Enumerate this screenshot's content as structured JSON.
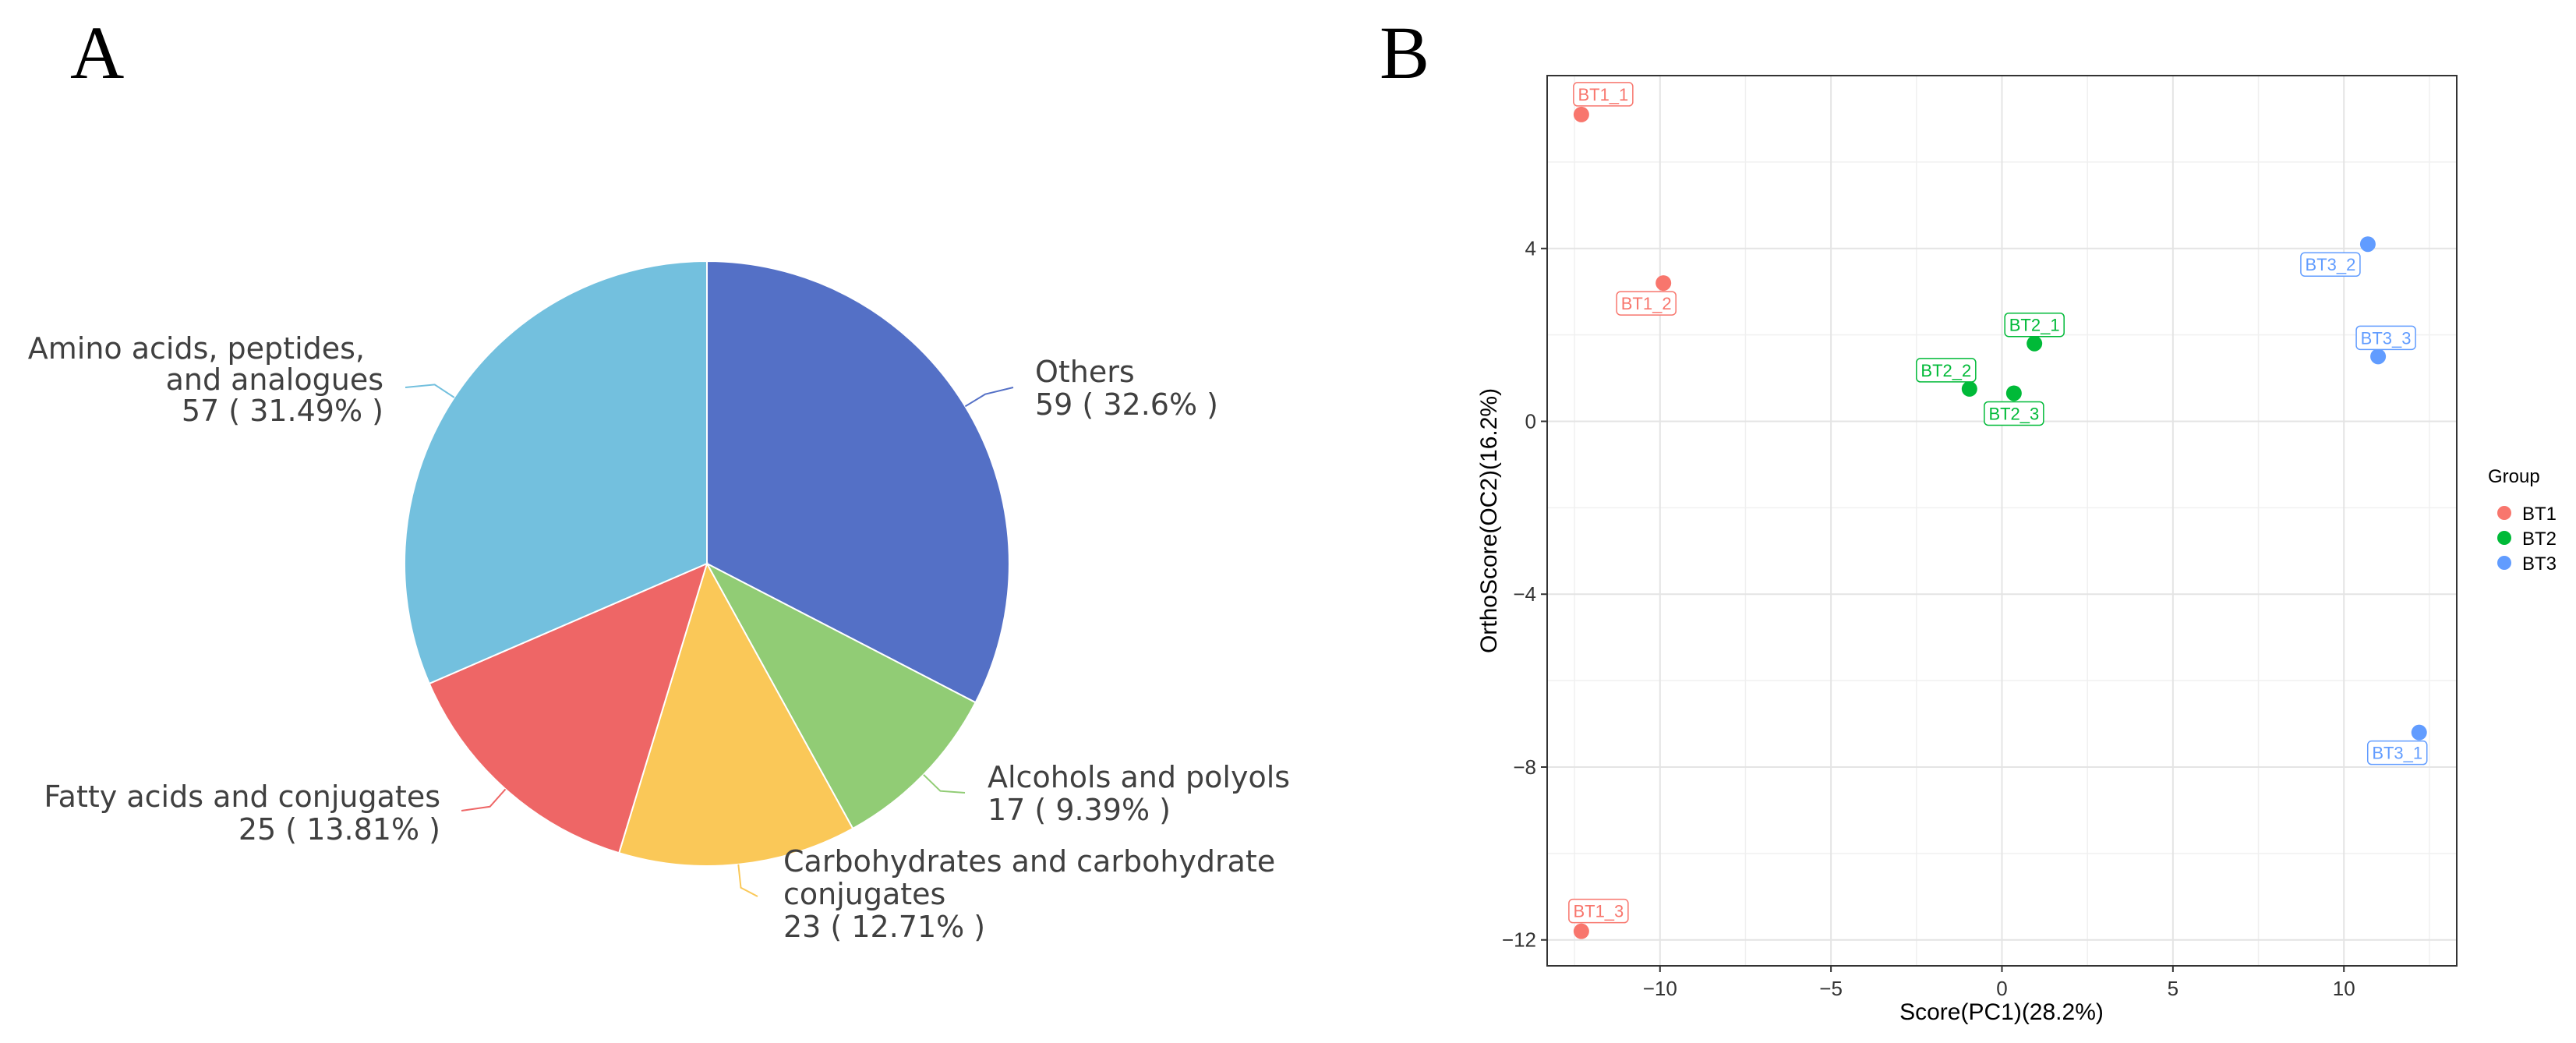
{
  "panels": {
    "a": "A",
    "b": "B"
  },
  "chart_data": [
    {
      "type": "pie",
      "panel": "A",
      "start_angle_deg": 0,
      "direction": "clockwise",
      "slices": [
        {
          "name": "Others",
          "value": 59,
          "label_value": "59 ( 32.6% )",
          "color": "#5470c6"
        },
        {
          "name": "Alcohols and polyols",
          "value": 17,
          "label_value": "17 ( 9.39% )",
          "color": "#91cc75"
        },
        {
          "name": "Carbohydrates and carbohydrate conjugates",
          "label_line1": "Carbohydrates and carbohydrate",
          "label_line2": "conjugates",
          "value": 23,
          "label_value": "23 ( 12.71% )",
          "color": "#fac858"
        },
        {
          "name": "Fatty acids and conjugates",
          "value": 25,
          "label_value": "25 ( 13.81% )",
          "color": "#ee6666"
        },
        {
          "name": "Amino acids, peptides, and analogues",
          "label_line1": "Amino acids, peptides,",
          "label_line2": "and analogues",
          "value": 57,
          "label_value": "57 ( 31.49% )",
          "color": "#73c0de"
        }
      ]
    },
    {
      "type": "scatter",
      "panel": "B",
      "xlabel": "Score(PC1)(28.2%)",
      "ylabel": "OrthoScore(OC2)(16.2%)",
      "xlim": [
        -13.3,
        13.3
      ],
      "ylim": [
        -12.6,
        8.0
      ],
      "xticks": [
        -10,
        -5,
        0,
        5,
        10
      ],
      "xtick_labels": [
        "−10",
        "−5",
        "0",
        "5",
        "10"
      ],
      "yticks": [
        -12,
        -8,
        -4,
        0,
        4
      ],
      "ytick_labels": [
        "−12",
        "−8",
        "−4",
        "0",
        "4"
      ],
      "grid": true,
      "legend": {
        "title": "Group",
        "position": "right",
        "items": [
          {
            "name": "BT1",
            "color": "#f8766d"
          },
          {
            "name": "BT2",
            "color": "#00ba38"
          },
          {
            "name": "BT3",
            "color": "#619cff"
          }
        ]
      },
      "points": [
        {
          "label": "BT1_1",
          "group": "BT1",
          "x": -12.3,
          "y": 7.1
        },
        {
          "label": "BT1_2",
          "group": "BT1",
          "x": -9.9,
          "y": 3.2
        },
        {
          "label": "BT1_3",
          "group": "BT1",
          "x": -12.3,
          "y": -11.8
        },
        {
          "label": "BT2_1",
          "group": "BT2",
          "x": 0.95,
          "y": 1.8
        },
        {
          "label": "BT2_2",
          "group": "BT2",
          "x": -0.95,
          "y": 0.75
        },
        {
          "label": "BT2_3",
          "group": "BT2",
          "x": 0.35,
          "y": 0.65
        },
        {
          "label": "BT3_1",
          "group": "BT3",
          "x": 12.2,
          "y": -7.2
        },
        {
          "label": "BT3_2",
          "group": "BT3",
          "x": 10.7,
          "y": 4.1
        },
        {
          "label": "BT3_3",
          "group": "BT3",
          "x": 11.0,
          "y": 1.5
        }
      ]
    }
  ]
}
